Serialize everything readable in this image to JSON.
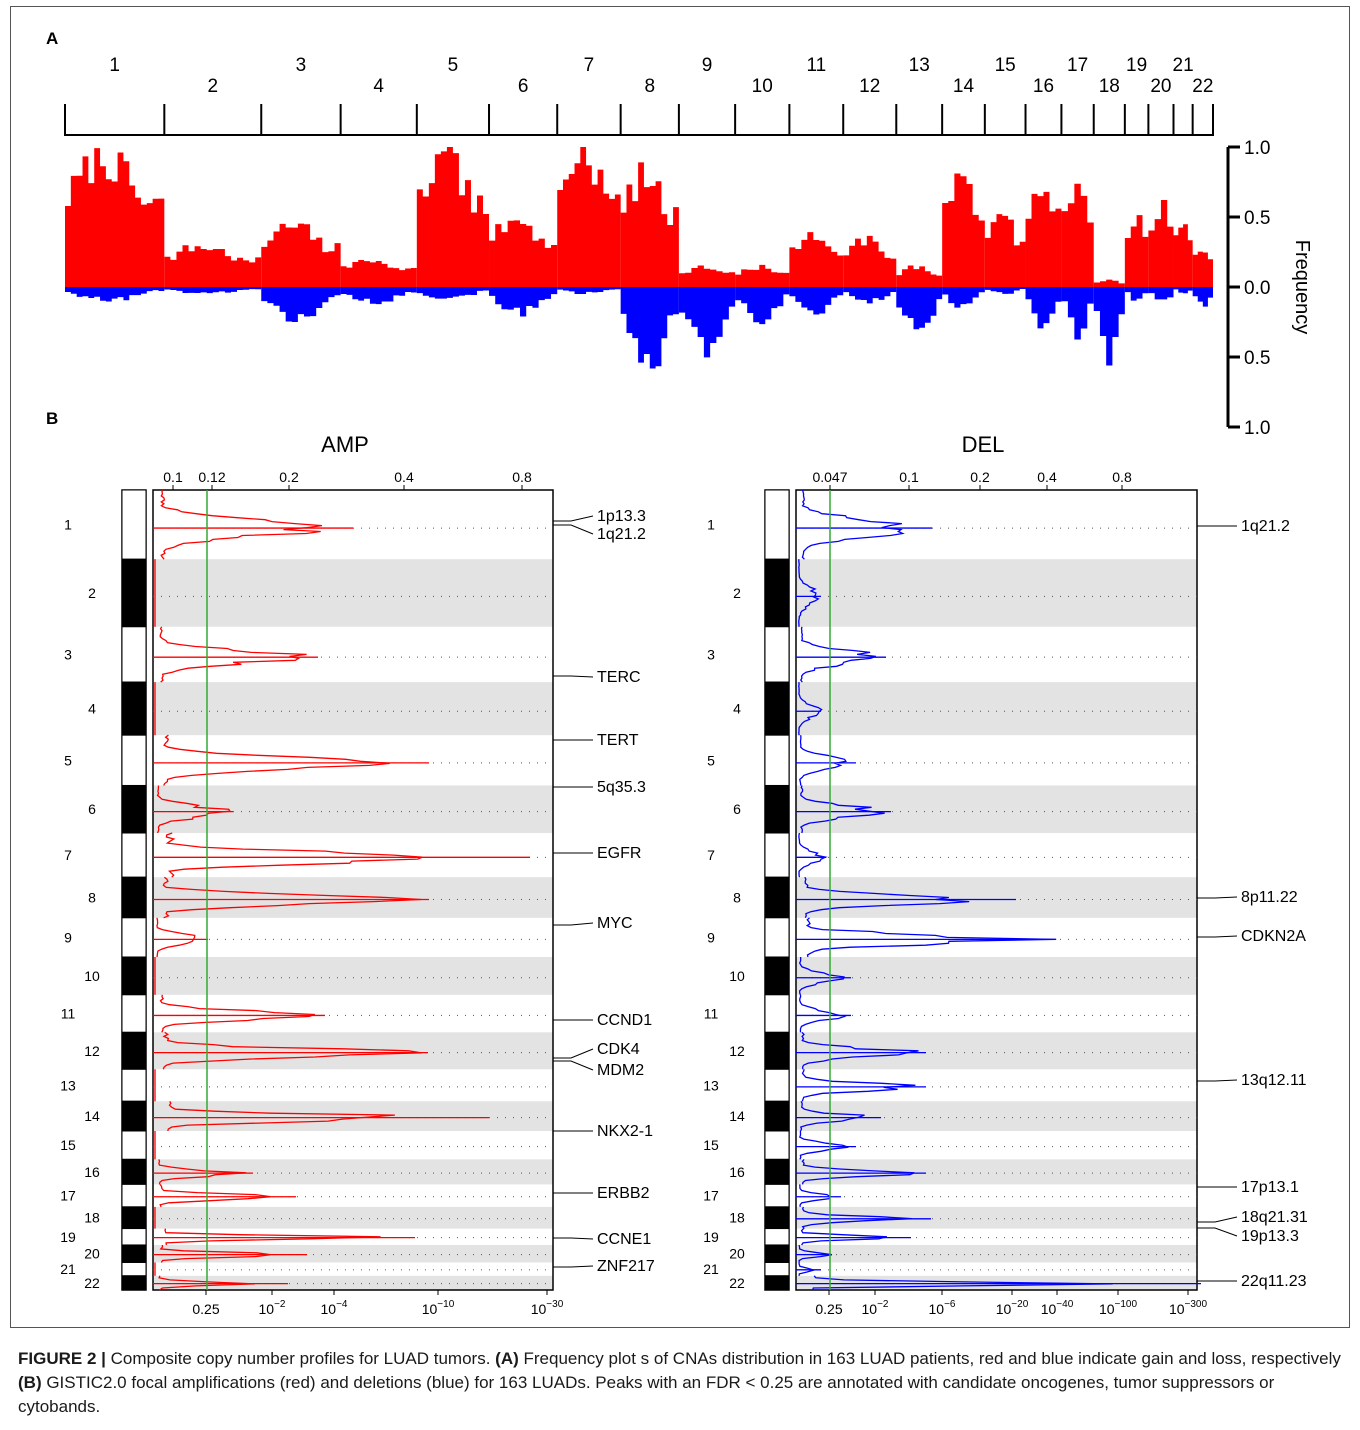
{
  "panel_a": {
    "label": "A",
    "chromosome_labels": [
      "1",
      "2",
      "3",
      "4",
      "5",
      "6",
      "7",
      "8",
      "9",
      "10",
      "11",
      "12",
      "13",
      "14",
      "15",
      "16",
      "17",
      "18",
      "19",
      "20",
      "21",
      "22"
    ],
    "y_label": "Frequency",
    "y_ticks": [
      "1.0",
      "0.5",
      "0.0",
      "0.5",
      "1.0"
    ],
    "gain_color": "#ff0000",
    "loss_color": "#0000ff"
  },
  "panel_b": {
    "label": "B",
    "amp": {
      "title": "AMP",
      "top_ticks": [
        "0.1",
        "0.12",
        "0.2",
        "0.4",
        "0.8"
      ],
      "bottom_ticks": [
        "0.25",
        "10",
        "10",
        "10",
        "10"
      ],
      "bottom_exponents": [
        "",
        "−2",
        "−4",
        "−10",
        "−30"
      ],
      "peaks": [
        "1p13.3",
        "1q21.2",
        "TERC",
        "TERT",
        "5q35.3",
        "EGFR",
        "MYC",
        "CCND1",
        "CDK4",
        "MDM2",
        "NKX2-1",
        "ERBB2",
        "CCNE1",
        "ZNF217"
      ],
      "color": "#ff0000"
    },
    "del": {
      "title": "DEL",
      "top_ticks": [
        "0.047",
        "0.1",
        "0.2",
        "0.4",
        "0.8"
      ],
      "bottom_ticks": [
        "0.25",
        "10",
        "10",
        "10",
        "10",
        "10",
        "10"
      ],
      "bottom_exponents": [
        "",
        "−2",
        "−6",
        "−20",
        "−40",
        "−100",
        "−300"
      ],
      "peaks": [
        "1q21.2",
        "8p11.22",
        "CDKN2A",
        "13q12.11",
        "17p13.1",
        "18q21.31",
        "19p13.3",
        "22q11.23"
      ],
      "color": "#0000ff"
    },
    "chromosome_labels": [
      "1",
      "2",
      "3",
      "4",
      "5",
      "6",
      "7",
      "8",
      "9",
      "10",
      "11",
      "12",
      "13",
      "14",
      "15",
      "16",
      "17",
      "18",
      "19",
      "20",
      "21",
      "22"
    ],
    "threshold_color": "#33aa33"
  },
  "caption": {
    "figure_label": "FIGURE 2 |",
    "text_1": " Composite copy number profiles for LUAD tumors. ",
    "a_label": "(A)",
    "text_2": " Frequency plot s of CNAs distribution in 163 LUAD patients, red and blue indicate gain and loss, respectively ",
    "b_label": "(B)",
    "text_3": " GISTIC2.0 focal amplifications (red) and deletions (blue) for 163 LUADs. Peaks with an FDR < 0.25 are annotated with candidate oncogenes, tumor suppressors or cytobands."
  },
  "chart_data": [
    {
      "type": "bar",
      "panel": "A",
      "x": "chromosome",
      "categories": [
        "1",
        "2",
        "3",
        "4",
        "5",
        "6",
        "7",
        "8",
        "9",
        "10",
        "11",
        "12",
        "13",
        "14",
        "15",
        "16",
        "17",
        "18",
        "19",
        "20",
        "21",
        "22"
      ],
      "ylabel": "Frequency",
      "ylim": [
        -1.0,
        1.0
      ],
      "series": [
        {
          "name": "gain",
          "values": [
            0.95,
            0.3,
            0.45,
            0.2,
            0.93,
            0.5,
            1.0,
            0.82,
            0.15,
            0.15,
            0.37,
            0.35,
            0.15,
            0.85,
            0.5,
            0.8,
            0.75,
            0.05,
            0.55,
            0.62,
            0.5,
            0.3
          ]
        },
        {
          "name": "loss",
          "values": [
            -0.1,
            -0.05,
            -0.25,
            -0.12,
            -0.1,
            -0.2,
            -0.05,
            -0.62,
            -0.47,
            -0.25,
            -0.2,
            -0.12,
            -0.35,
            -0.15,
            -0.05,
            -0.3,
            -0.35,
            -0.52,
            -0.1,
            -0.12,
            -0.05,
            -0.15
          ]
        }
      ]
    },
    {
      "type": "line",
      "panel": "B-AMP",
      "title": "AMP",
      "peaks": [
        "1p13.3",
        "1q21.2",
        "TERC",
        "TERT",
        "5q35.3",
        "EGFR",
        "MYC",
        "CCND1",
        "CDK4",
        "MDM2",
        "NKX2-1",
        "ERBB2",
        "CCNE1",
        "ZNF217"
      ]
    },
    {
      "type": "line",
      "panel": "B-DEL",
      "title": "DEL",
      "peaks": [
        "1q21.2",
        "8p11.22",
        "CDKN2A",
        "13q12.11",
        "17p13.1",
        "18q21.31",
        "19p13.3",
        "22q11.23"
      ]
    }
  ]
}
